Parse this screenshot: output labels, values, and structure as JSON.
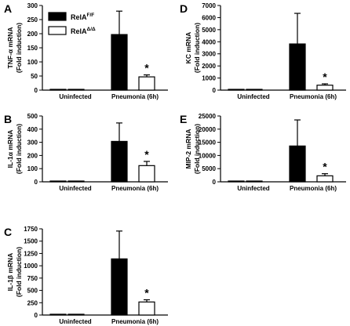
{
  "legend": {
    "items": [
      {
        "base": "RelA",
        "sup": "F/F",
        "fill": "#000000"
      },
      {
        "base": "RelA",
        "sup": "Δ/Δ",
        "fill": "#ffffff"
      }
    ]
  },
  "colors": {
    "wildtype": "#000000",
    "knockout": "#ffffff",
    "axis": "#000000"
  },
  "chart_data": [
    {
      "panel": "A",
      "type": "bar",
      "ylabel_lines": [
        "TNF-α mRNA",
        "(Fold induction)"
      ],
      "categories": [
        "Uninfected",
        "Pneumonia (6h)"
      ],
      "ylim": [
        0,
        300
      ],
      "yticks": [
        "0",
        "50",
        "100",
        "150",
        "200",
        "250",
        "300"
      ],
      "series": [
        {
          "name": "RelA F/F",
          "values": [
            1,
            197
          ],
          "errors": [
            0,
            83
          ]
        },
        {
          "name": "RelA Δ/Δ",
          "values": [
            1,
            47
          ],
          "errors": [
            0,
            7
          ]
        }
      ],
      "annotations": [
        {
          "category": 1,
          "series": 1,
          "text": "*"
        }
      ]
    },
    {
      "panel": "B",
      "type": "bar",
      "ylabel_lines": [
        "IL-1α mRNA",
        "(Fold induction)"
      ],
      "categories": [
        "Uninfected",
        "Pneumonia (6h)"
      ],
      "ylim": [
        0,
        500
      ],
      "yticks": [
        "0",
        "100",
        "200",
        "300",
        "400",
        "500"
      ],
      "series": [
        {
          "name": "RelA F/F",
          "values": [
            2,
            307
          ],
          "errors": [
            0,
            140
          ]
        },
        {
          "name": "RelA Δ/Δ",
          "values": [
            2,
            123
          ],
          "errors": [
            0,
            32
          ]
        }
      ],
      "annotations": [
        {
          "category": 1,
          "series": 1,
          "text": "*"
        }
      ]
    },
    {
      "panel": "C",
      "type": "bar",
      "ylabel_lines": [
        "IL-1β mRNA",
        "(Fold induction)"
      ],
      "categories": [
        "Uninfected",
        "Pneumonia (6h)"
      ],
      "ylim": [
        0,
        1750
      ],
      "yticks": [
        "0",
        "250",
        "500",
        "750",
        "1000",
        "1250",
        "1500",
        "1750"
      ],
      "series": [
        {
          "name": "RelA F/F",
          "values": [
            2,
            1140
          ],
          "errors": [
            0,
            565
          ]
        },
        {
          "name": "RelA Δ/Δ",
          "values": [
            2,
            265
          ],
          "errors": [
            0,
            45
          ]
        }
      ],
      "annotations": [
        {
          "category": 1,
          "series": 1,
          "text": "*"
        }
      ]
    },
    {
      "panel": "D",
      "type": "bar",
      "ylabel_lines": [
        "KC mRNA",
        "(Fold induction)"
      ],
      "categories": [
        "Uninfected",
        "Pneumonia (6h)"
      ],
      "ylim": [
        0,
        7000
      ],
      "yticks": [
        "0",
        "1000",
        "2000",
        "3000",
        "4000",
        "5000",
        "6000",
        "7000"
      ],
      "series": [
        {
          "name": "RelA F/F",
          "values": [
            5,
            3820
          ],
          "errors": [
            0,
            2530
          ]
        },
        {
          "name": "RelA Δ/Δ",
          "values": [
            5,
            410
          ],
          "errors": [
            0,
            110
          ]
        }
      ],
      "annotations": [
        {
          "category": 1,
          "series": 1,
          "text": "*"
        }
      ]
    },
    {
      "panel": "E",
      "type": "bar",
      "ylabel_lines": [
        "MIP-2 mRNA",
        "(Fold induction)"
      ],
      "categories": [
        "Uninfected",
        "Pneumonia (6h)"
      ],
      "ylim": [
        0,
        25000
      ],
      "yticks": [
        "0",
        "5000",
        "10000",
        "15000",
        "20000",
        "25000"
      ],
      "series": [
        {
          "name": "RelA F/F",
          "values": [
            10,
            13600
          ],
          "errors": [
            0,
            9900
          ]
        },
        {
          "name": "RelA Δ/Δ",
          "values": [
            10,
            2280
          ],
          "errors": [
            0,
            800
          ]
        }
      ],
      "annotations": [
        {
          "category": 1,
          "series": 1,
          "text": "*"
        }
      ]
    }
  ]
}
